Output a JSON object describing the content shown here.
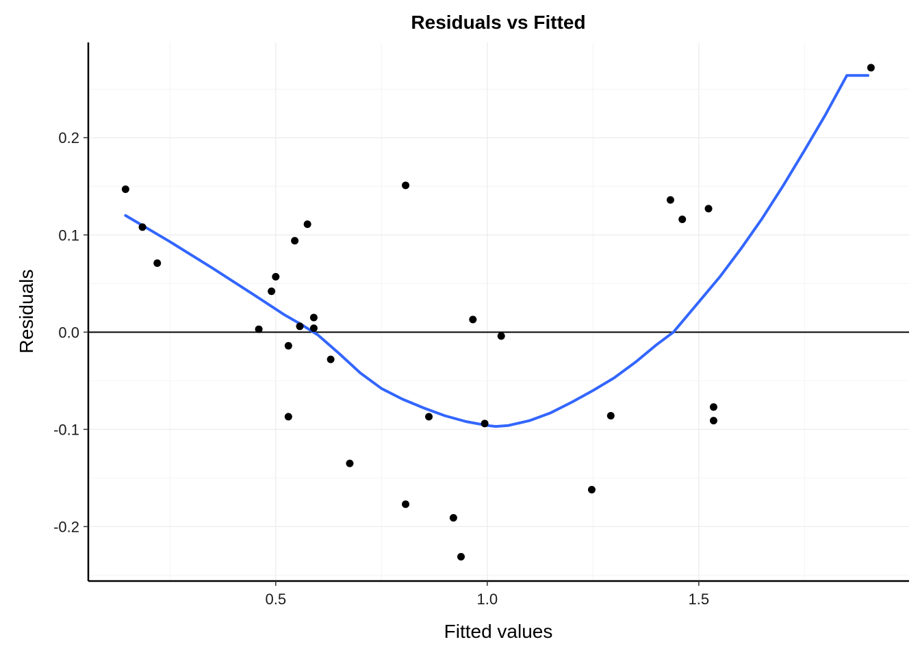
{
  "chart_data": {
    "type": "scatter",
    "title": "Residuals vs Fitted",
    "xlabel": "Fitted values",
    "ylabel": "Residuals",
    "xlim": [
      0.057,
      1.997
    ],
    "ylim": [
      -0.256,
      0.298
    ],
    "x_ticks": [
      0.5,
      1.0,
      1.5
    ],
    "x_tick_labels": [
      "0.5",
      "1.0",
      "1.5"
    ],
    "x_minor_ticks": [
      0.25,
      0.75,
      1.25,
      1.75
    ],
    "y_ticks": [
      -0.2,
      -0.1,
      0.0,
      0.1,
      0.2
    ],
    "y_tick_labels": [
      "-0.2",
      "-0.1",
      "0.0",
      "0.1",
      "0.2"
    ],
    "y_minor_ticks": [
      -0.25,
      -0.15,
      -0.05,
      0.05,
      0.15,
      0.25
    ],
    "grid": true,
    "reference_line_y": 0.0,
    "colors": {
      "points": "#000000",
      "smooth": "#3366ff",
      "grid": "#ebebeb",
      "reference": "#000000"
    },
    "series": [
      {
        "name": "residuals",
        "kind": "points",
        "x": [
          0.145,
          0.185,
          0.22,
          0.46,
          0.49,
          0.5,
          0.53,
          0.53,
          0.545,
          0.557,
          0.575,
          0.59,
          0.59,
          0.63,
          0.675,
          0.807,
          0.807,
          0.862,
          0.92,
          0.938,
          0.966,
          0.994,
          1.033,
          1.247,
          1.292,
          1.433,
          1.461,
          1.523,
          1.535,
          1.535,
          1.907
        ],
        "y": [
          0.147,
          0.108,
          0.071,
          0.003,
          0.042,
          0.057,
          -0.014,
          -0.087,
          0.094,
          0.006,
          0.111,
          0.015,
          0.004,
          -0.028,
          -0.135,
          0.151,
          -0.177,
          -0.087,
          -0.191,
          -0.231,
          0.013,
          -0.094,
          -0.004,
          -0.162,
          -0.086,
          0.136,
          0.116,
          0.127,
          -0.077,
          -0.091,
          0.272
        ]
      },
      {
        "name": "smooth",
        "kind": "line",
        "x": [
          0.145,
          0.25,
          0.35,
          0.45,
          0.52,
          0.56,
          0.6,
          0.65,
          0.7,
          0.75,
          0.8,
          0.85,
          0.9,
          0.95,
          1.0,
          1.02,
          1.05,
          1.1,
          1.15,
          1.2,
          1.25,
          1.3,
          1.35,
          1.4,
          1.44,
          1.5,
          1.55,
          1.6,
          1.65,
          1.7,
          1.75,
          1.8,
          1.85,
          1.9
        ],
        "y": [
          0.12,
          0.093,
          0.066,
          0.038,
          0.018,
          0.008,
          -0.003,
          -0.022,
          -0.042,
          -0.058,
          -0.069,
          -0.078,
          -0.086,
          -0.092,
          -0.096,
          -0.097,
          -0.096,
          -0.091,
          -0.083,
          -0.072,
          -0.06,
          -0.047,
          -0.031,
          -0.013,
          0.0,
          0.031,
          0.057,
          0.086,
          0.117,
          0.151,
          0.187,
          0.224,
          0.264,
          0.264
        ]
      }
    ]
  }
}
